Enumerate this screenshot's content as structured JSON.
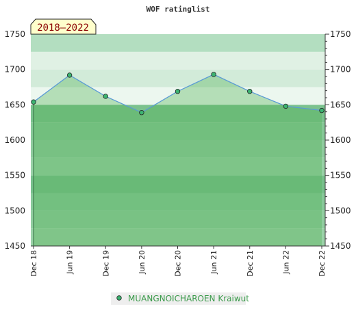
{
  "chart_data": {
    "type": "line",
    "title": "WOF ratinglist",
    "period_label": "2018–2022",
    "x": [
      "Dec 18",
      "Jun 19",
      "Dec 19",
      "Jun 20",
      "Dec 20",
      "Jun 21",
      "Dec 21",
      "Jun 22",
      "Dec 22"
    ],
    "series": [
      {
        "name": "MUANGNOICHAROEN Kraiwut",
        "values": [
          1654,
          1692,
          1662,
          1639,
          1669,
          1693,
          1669,
          1648,
          1642
        ]
      }
    ],
    "ylim": [
      1450,
      1750
    ],
    "yticks": [
      1450,
      1500,
      1550,
      1600,
      1650,
      1700,
      1750
    ],
    "y_axis": "left and right",
    "grid": false,
    "legend_position": "bottom-center",
    "colors": {
      "line": "#5b9bd5",
      "marker": "#3cb371",
      "fill": "#4caf50",
      "legend_text": "#3a9a4a",
      "period_box": "#ffffcc",
      "period_text": "#8b0000"
    }
  }
}
